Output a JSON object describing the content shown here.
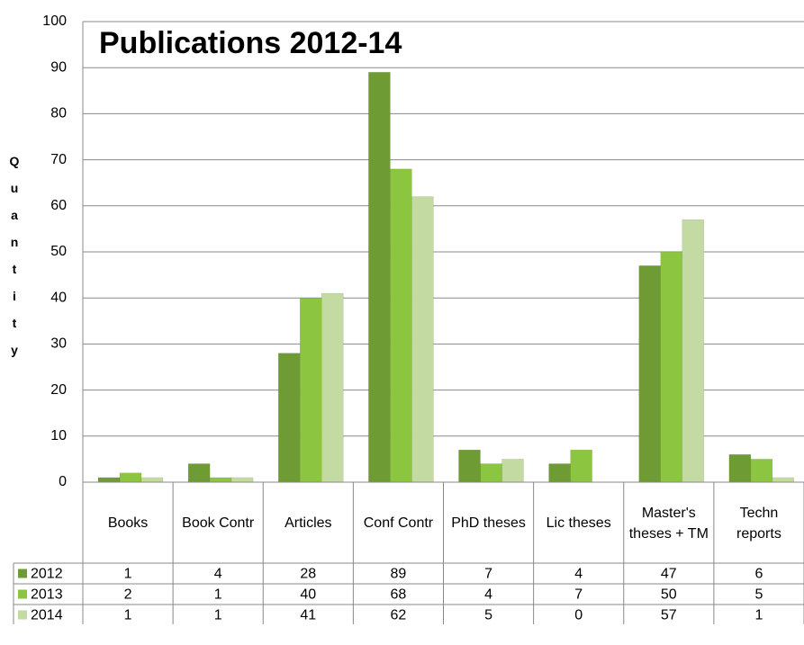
{
  "chart_data": {
    "type": "bar",
    "title": "Publications 2012-14",
    "y_label": "Quantity",
    "categories": [
      "Books",
      "Book Contr",
      "Articles",
      "Conf Contr",
      "PhD theses",
      "Lic theses",
      "Master's theses + TM",
      "Techn reports"
    ],
    "series": [
      {
        "name": "2012",
        "color": "#6f9b35",
        "values": [
          1,
          4,
          28,
          89,
          7,
          4,
          47,
          6
        ]
      },
      {
        "name": "2013",
        "color": "#8cc540",
        "values": [
          2,
          1,
          40,
          68,
          4,
          7,
          50,
          5
        ]
      },
      {
        "name": "2014",
        "color": "#c3dba2",
        "values": [
          1,
          1,
          41,
          62,
          5,
          0,
          57,
          1
        ]
      }
    ],
    "ylim": [
      0,
      100
    ],
    "yticks": [
      0,
      10,
      20,
      30,
      40,
      50,
      60,
      70,
      80,
      90,
      100
    ],
    "grid": true,
    "data_table": true
  }
}
